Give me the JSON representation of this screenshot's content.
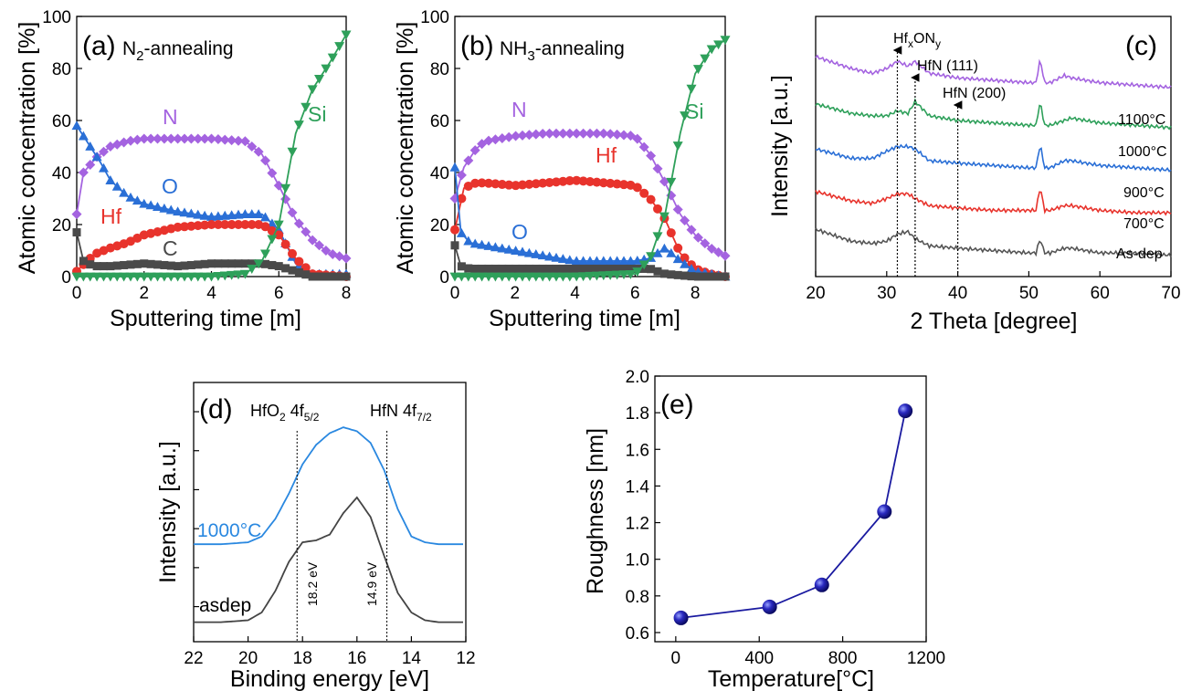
{
  "colors": {
    "N": "#a463e0",
    "O": "#2a6fd6",
    "Hf": "#e8332c",
    "C": "#4a4a4a",
    "Si": "#2ea05a",
    "xrd_1100": "#a463e0",
    "xrd_1000": "#2ea05a",
    "xrd_900": "#2a6fd6",
    "xrd_700": "#e8332c",
    "xrd_asdep": "#555555",
    "xps_1000": "#2a88e0",
    "xps_asdep": "#444444",
    "roughness": "#1a1aa0"
  },
  "panels": {
    "a": {
      "label": "(a)",
      "title_main": "N",
      "title_sub": "2",
      "title_rest": "-annealing",
      "xlabel": "Sputtering time [m]",
      "ylabel": "Atomic concentration [%]",
      "xticks": [
        "0",
        "2",
        "4",
        "6",
        "8"
      ],
      "yticks": [
        "0",
        "20",
        "40",
        "60",
        "80",
        "100"
      ],
      "series_labels": {
        "N": "N",
        "O": "O",
        "Hf": "Hf",
        "C": "C",
        "Si": "Si"
      }
    },
    "b": {
      "label": "(b)",
      "title_main": "NH",
      "title_sub": "3",
      "title_rest": "-annealing",
      "xlabel": "Sputtering time [m]",
      "ylabel": "Atomic concentration [%]",
      "xticks": [
        "0",
        "2",
        "4",
        "6",
        "8"
      ],
      "yticks": [
        "0",
        "20",
        "40",
        "60",
        "80",
        "100"
      ],
      "series_labels": {
        "N": "N",
        "Hf": "Hf",
        "O": "O",
        "Si": "Si"
      }
    },
    "c": {
      "label": "(c)",
      "xlabel": "2 Theta [degree]",
      "ylabel": "Intensity [a.u.]",
      "xticks": [
        "20",
        "30",
        "40",
        "50",
        "60",
        "70"
      ],
      "peak1_main": "Hf",
      "peak1_sub1": "x",
      "peak1_mid": "ON",
      "peak1_sub2": "y",
      "peak2": "HfN (111)",
      "peak3": "HfN (200)",
      "series_labels": [
        "1100°C",
        "1000°C",
        "900°C",
        "700°C",
        "As-dep"
      ]
    },
    "d": {
      "label": "(d)",
      "xlabel": "Binding energy [eV]",
      "ylabel": "Intensity [a.u.]",
      "xticks": [
        "22",
        "20",
        "18",
        "16",
        "14",
        "12"
      ],
      "hfo2_main": "HfO",
      "hfo2_sub": "2",
      "hfo2_rest": " 4f",
      "hfo2_sub2": "5/2",
      "hfn_main": "HfN 4f",
      "hfn_sub": "7/2",
      "line1": "18.2 eV",
      "line2": "14.9 eV",
      "series_labels": [
        "1000°C",
        "asdep"
      ]
    },
    "e": {
      "label": "(e)",
      "xlabel": "Temperature[°C]",
      "ylabel": "Roughness [nm]",
      "xticks": [
        "0",
        "400",
        "800",
        "1200"
      ],
      "yticks": [
        "0.6",
        "0.8",
        "1.0",
        "1.2",
        "1.4",
        "1.6",
        "1.8",
        "2.0"
      ]
    }
  },
  "chart_data": [
    {
      "type": "line",
      "panel": "a",
      "title": "N2-annealing",
      "xlabel": "Sputtering time [m]",
      "ylabel": "Atomic concentration [%]",
      "xlim": [
        0,
        8
      ],
      "ylim": [
        0,
        100
      ],
      "series": [
        {
          "name": "N",
          "x": [
            0,
            0.2,
            0.6,
            1,
            1.5,
            2,
            3,
            4,
            5,
            5.5,
            6,
            6.5,
            7,
            7.5,
            8
          ],
          "y": [
            24,
            40,
            46,
            50,
            52,
            53,
            53,
            53,
            52,
            47,
            35,
            22,
            14,
            9,
            7
          ]
        },
        {
          "name": "O",
          "x": [
            0,
            0.3,
            0.7,
            1,
            1.5,
            2,
            3,
            4,
            5,
            5.5,
            6,
            6.5,
            7,
            8
          ],
          "y": [
            58,
            52,
            44,
            37,
            31,
            28,
            25,
            23,
            24,
            24,
            18,
            5,
            1,
            1
          ]
        },
        {
          "name": "Hf",
          "x": [
            0,
            0.3,
            0.6,
            1,
            1.5,
            2,
            3,
            4,
            5,
            5.5,
            6,
            6.5,
            7,
            8
          ],
          "y": [
            2,
            6,
            9,
            11,
            13,
            16,
            19,
            20,
            20,
            20,
            16,
            7,
            1,
            0
          ]
        },
        {
          "name": "C",
          "x": [
            0,
            0.2,
            0.5,
            1,
            2,
            3,
            4,
            5,
            5.5,
            6,
            6.5,
            7,
            8
          ],
          "y": [
            17,
            6,
            4,
            4,
            5,
            4,
            5,
            5,
            5,
            4,
            2,
            0,
            0
          ]
        },
        {
          "name": "Si",
          "x": [
            0,
            2,
            4,
            5,
            5.5,
            6,
            6.5,
            7,
            7.5,
            8
          ],
          "y": [
            0,
            0,
            0,
            1,
            6,
            20,
            55,
            72,
            82,
            93
          ]
        }
      ]
    },
    {
      "type": "line",
      "panel": "b",
      "title": "NH3-annealing",
      "xlabel": "Sputtering time [m]",
      "ylabel": "Atomic concentration [%]",
      "xlim": [
        0,
        9
      ],
      "ylim": [
        0,
        100
      ],
      "series": [
        {
          "name": "N",
          "x": [
            0,
            0.3,
            0.7,
            1,
            2,
            3,
            4,
            5,
            6,
            6.5,
            7,
            7.5,
            8,
            8.5,
            9
          ],
          "y": [
            30,
            42,
            49,
            52,
            54,
            55,
            55,
            55,
            54,
            47,
            36,
            24,
            16,
            11,
            8
          ]
        },
        {
          "name": "Hf",
          "x": [
            0,
            0.3,
            0.7,
            1,
            2,
            3,
            4,
            5,
            6,
            6.5,
            7,
            7.5,
            8,
            8.5,
            9
          ],
          "y": [
            18,
            34,
            36,
            36,
            35,
            36,
            37,
            36,
            35,
            30,
            22,
            9,
            3,
            1,
            0
          ]
        },
        {
          "name": "O",
          "x": [
            0,
            0.2,
            0.5,
            1,
            2,
            3,
            4,
            5,
            6,
            6.5,
            7,
            7.5,
            8,
            9
          ],
          "y": [
            42,
            17,
            13,
            12,
            10,
            8,
            6,
            6,
            6,
            7,
            11,
            6,
            2,
            0
          ]
        },
        {
          "name": "C",
          "x": [
            0,
            0.2,
            0.5,
            1,
            2,
            3,
            4,
            5,
            6,
            6.5,
            7,
            8,
            9
          ],
          "y": [
            12,
            4,
            3,
            3,
            3,
            3,
            3,
            3,
            3,
            3,
            1,
            0,
            0
          ]
        },
        {
          "name": "Si",
          "x": [
            0,
            2,
            4,
            6,
            6.5,
            7,
            7.5,
            8,
            8.5,
            9
          ],
          "y": [
            0,
            0,
            0,
            1,
            7,
            24,
            55,
            78,
            87,
            91
          ]
        }
      ]
    },
    {
      "type": "line",
      "panel": "c",
      "xlabel": "2 Theta [degree]",
      "ylabel": "Intensity [a.u.]",
      "xlim": [
        20,
        70
      ],
      "x": [
        20,
        25,
        28,
        30,
        31.5,
        33,
        34,
        36,
        40,
        45,
        50,
        51,
        51.6,
        52.2,
        53,
        55,
        56,
        60,
        65,
        70
      ],
      "series": [
        {
          "name": "1100°C",
          "y": [
            9.3,
            8.8,
            8.6,
            8.8,
            9.1,
            8.9,
            9.1,
            8.6,
            8.4,
            8.3,
            8.2,
            8.2,
            9.2,
            8.2,
            8.2,
            8.5,
            8.4,
            8.2,
            8.1,
            8.0
          ]
        },
        {
          "name": "1000°C",
          "y": [
            7.3,
            6.9,
            6.8,
            6.8,
            7.0,
            6.9,
            7.4,
            6.8,
            6.6,
            6.5,
            6.4,
            6.4,
            7.4,
            6.4,
            6.4,
            6.6,
            6.7,
            6.5,
            6.4,
            6.3
          ]
        },
        {
          "name": "900°C",
          "y": [
            5.4,
            5.0,
            5.0,
            5.3,
            5.5,
            5.5,
            5.4,
            4.9,
            4.8,
            4.7,
            4.6,
            4.6,
            5.6,
            4.6,
            4.6,
            4.9,
            4.9,
            4.7,
            4.6,
            4.5
          ]
        },
        {
          "name": "700°C",
          "y": [
            3.6,
            3.2,
            3.1,
            3.3,
            3.5,
            3.5,
            3.3,
            3.0,
            2.9,
            2.8,
            2.8,
            2.8,
            3.8,
            2.8,
            2.8,
            3.0,
            3.0,
            2.8,
            2.7,
            2.7
          ]
        },
        {
          "name": "As-dep",
          "y": [
            2.0,
            1.5,
            1.4,
            1.5,
            1.8,
            1.9,
            1.6,
            1.3,
            1.2,
            1.1,
            1.0,
            1.0,
            1.6,
            1.0,
            1.0,
            1.2,
            1.2,
            1.0,
            1.0,
            0.9
          ]
        }
      ],
      "annotations": [
        {
          "x": 31.5,
          "text": "HfxONy"
        },
        {
          "x": 34,
          "text": "HfN (111)"
        },
        {
          "x": 40,
          "text": "HfN (200)"
        }
      ]
    },
    {
      "type": "line",
      "panel": "d",
      "xlabel": "Binding energy [eV]",
      "ylabel": "Intensity [a.u.]",
      "xlim": [
        22,
        12
      ],
      "x": [
        22,
        21,
        20,
        19.5,
        19,
        18.5,
        18,
        17.5,
        17,
        16.5,
        16,
        15.5,
        15,
        14.5,
        14,
        13.5,
        13,
        12
      ],
      "series": [
        {
          "name": "1000°C",
          "y": [
            0.42,
            0.42,
            0.43,
            0.46,
            0.55,
            0.68,
            0.83,
            0.93,
            0.99,
            1.02,
            1.0,
            0.94,
            0.8,
            0.6,
            0.46,
            0.43,
            0.42,
            0.42
          ]
        },
        {
          "name": "asdep",
          "y": [
            0.02,
            0.02,
            0.03,
            0.07,
            0.18,
            0.33,
            0.43,
            0.44,
            0.47,
            0.58,
            0.66,
            0.56,
            0.36,
            0.17,
            0.07,
            0.03,
            0.02,
            0.02
          ]
        }
      ],
      "vlines": [
        {
          "x": 18.2,
          "text": "18.2 eV"
        },
        {
          "x": 14.9,
          "text": "14.9 eV"
        }
      ]
    },
    {
      "type": "line",
      "panel": "e",
      "xlabel": "Temperature[°C]",
      "ylabel": "Roughness [nm]",
      "xlim": [
        -100,
        1200
      ],
      "ylim": [
        0.55,
        2.0
      ],
      "x": [
        25,
        450,
        700,
        1000,
        1100
      ],
      "y": [
        0.68,
        0.74,
        0.86,
        1.26,
        1.81
      ]
    }
  ]
}
